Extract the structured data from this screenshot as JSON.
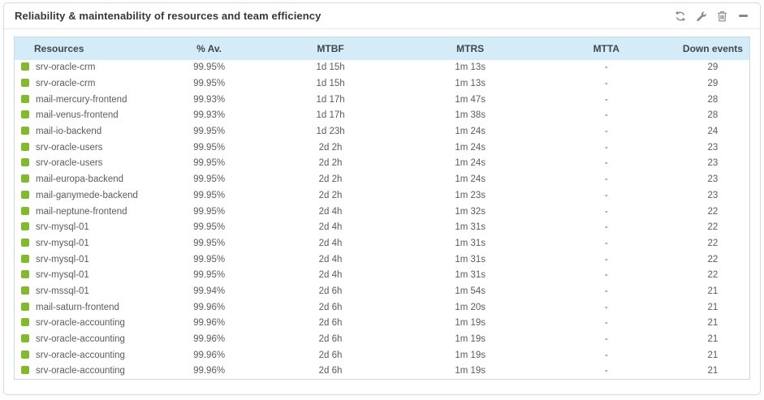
{
  "widget": {
    "title": "Reliability & maintenability of resources and team efficiency",
    "toolbar": {
      "icons": [
        "refresh",
        "configure",
        "delete",
        "minimize"
      ]
    }
  },
  "colors": {
    "status_green": "#82b92e",
    "header_bg": "#d3ecf7",
    "table_border": "#c6dcea"
  },
  "table": {
    "columns": [
      "Resources",
      "% Av.",
      "MTBF",
      "MTRS",
      "MTTA",
      "Down events"
    ],
    "rows": [
      {
        "resource": "srv-oracle-crm",
        "availability": "99.95%",
        "mtbf": "1d 15h",
        "mtrs": "1m 13s",
        "mtta": "-",
        "down_events": "29"
      },
      {
        "resource": "srv-oracle-crm",
        "availability": "99.95%",
        "mtbf": "1d 15h",
        "mtrs": "1m 13s",
        "mtta": "-",
        "down_events": "29"
      },
      {
        "resource": "mail-mercury-frontend",
        "availability": "99.93%",
        "mtbf": "1d 17h",
        "mtrs": "1m 47s",
        "mtta": "-",
        "down_events": "28"
      },
      {
        "resource": "mail-venus-frontend",
        "availability": "99.93%",
        "mtbf": "1d 17h",
        "mtrs": "1m 38s",
        "mtta": "-",
        "down_events": "28"
      },
      {
        "resource": "mail-io-backend",
        "availability": "99.95%",
        "mtbf": "1d 23h",
        "mtrs": "1m 24s",
        "mtta": "-",
        "down_events": "24"
      },
      {
        "resource": "srv-oracle-users",
        "availability": "99.95%",
        "mtbf": "2d 2h",
        "mtrs": "1m 24s",
        "mtta": "-",
        "down_events": "23"
      },
      {
        "resource": "srv-oracle-users",
        "availability": "99.95%",
        "mtbf": "2d 2h",
        "mtrs": "1m 24s",
        "mtta": "-",
        "down_events": "23"
      },
      {
        "resource": "mail-europa-backend",
        "availability": "99.95%",
        "mtbf": "2d 2h",
        "mtrs": "1m 24s",
        "mtta": "-",
        "down_events": "23"
      },
      {
        "resource": "mail-ganymede-backend",
        "availability": "99.95%",
        "mtbf": "2d 2h",
        "mtrs": "1m 23s",
        "mtta": "-",
        "down_events": "23"
      },
      {
        "resource": "mail-neptune-frontend",
        "availability": "99.95%",
        "mtbf": "2d 4h",
        "mtrs": "1m 32s",
        "mtta": "-",
        "down_events": "22"
      },
      {
        "resource": "srv-mysql-01",
        "availability": "99.95%",
        "mtbf": "2d 4h",
        "mtrs": "1m 31s",
        "mtta": "-",
        "down_events": "22"
      },
      {
        "resource": "srv-mysql-01",
        "availability": "99.95%",
        "mtbf": "2d 4h",
        "mtrs": "1m 31s",
        "mtta": "-",
        "down_events": "22"
      },
      {
        "resource": "srv-mysql-01",
        "availability": "99.95%",
        "mtbf": "2d 4h",
        "mtrs": "1m 31s",
        "mtta": "-",
        "down_events": "22"
      },
      {
        "resource": "srv-mysql-01",
        "availability": "99.95%",
        "mtbf": "2d 4h",
        "mtrs": "1m 31s",
        "mtta": "-",
        "down_events": "22"
      },
      {
        "resource": "srv-mssql-01",
        "availability": "99.94%",
        "mtbf": "2d 6h",
        "mtrs": "1m 54s",
        "mtta": "-",
        "down_events": "21"
      },
      {
        "resource": "mail-saturn-frontend",
        "availability": "99.96%",
        "mtbf": "2d 6h",
        "mtrs": "1m 20s",
        "mtta": "-",
        "down_events": "21"
      },
      {
        "resource": "srv-oracle-accounting",
        "availability": "99.96%",
        "mtbf": "2d 6h",
        "mtrs": "1m 19s",
        "mtta": "-",
        "down_events": "21"
      },
      {
        "resource": "srv-oracle-accounting",
        "availability": "99.96%",
        "mtbf": "2d 6h",
        "mtrs": "1m 19s",
        "mtta": "-",
        "down_events": "21"
      },
      {
        "resource": "srv-oracle-accounting",
        "availability": "99.96%",
        "mtbf": "2d 6h",
        "mtrs": "1m 19s",
        "mtta": "-",
        "down_events": "21"
      },
      {
        "resource": "srv-oracle-accounting",
        "availability": "99.96%",
        "mtbf": "2d 6h",
        "mtrs": "1m 19s",
        "mtta": "-",
        "down_events": "21"
      }
    ]
  }
}
